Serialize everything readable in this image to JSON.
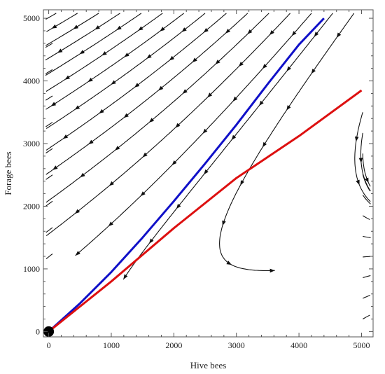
{
  "chart_data": {
    "type": "stream-plot",
    "xlabel": "Hive bees",
    "ylabel": "Forage bees",
    "xlim": [
      0,
      5000
    ],
    "ylim": [
      0,
      5000
    ],
    "x_ticks": [
      0,
      1000,
      2000,
      3000,
      4000,
      5000
    ],
    "y_ticks": [
      0,
      1000,
      2000,
      3000,
      4000,
      5000
    ],
    "tick_labels_x": [
      "0",
      "1000",
      "2000",
      "3000",
      "4000",
      "5000"
    ],
    "tick_labels_y": [
      "0",
      "1000",
      "2000",
      "3000",
      "4000",
      "5000"
    ],
    "grid": false,
    "series": [
      {
        "color": "#1010c8",
        "points": [
          [
            0,
            0
          ],
          [
            500,
            450
          ],
          [
            1000,
            950
          ],
          [
            1500,
            1500
          ],
          [
            2000,
            2080
          ],
          [
            2500,
            2680
          ],
          [
            3000,
            3300
          ],
          [
            3500,
            3950
          ],
          [
            4000,
            4580
          ],
          [
            4400,
            5000
          ]
        ]
      },
      {
        "color": "#dd1010",
        "points": [
          [
            0,
            0
          ],
          [
            1000,
            800
          ],
          [
            2000,
            1650
          ],
          [
            3000,
            2450
          ],
          [
            4000,
            3120
          ],
          [
            5000,
            3850
          ]
        ]
      }
    ],
    "equilibrium_point": [
      0,
      0
    ],
    "colors": {
      "arrows": "#111111",
      "frame": "#555555"
    }
  }
}
